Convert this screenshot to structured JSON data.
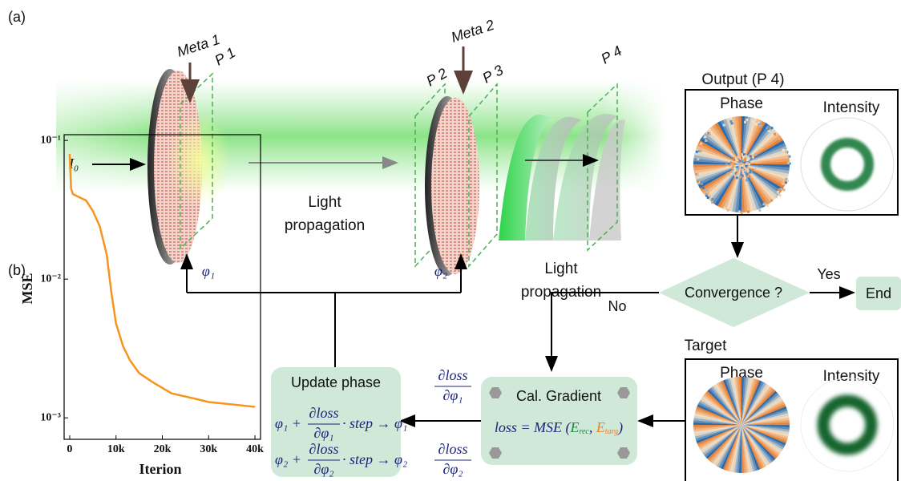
{
  "panel_labels": [
    "(a)",
    "(b)"
  ],
  "setup": {
    "meta1": "Meta 1",
    "meta2": "Meta 2",
    "planes": [
      "P 1",
      "P 2",
      "P 3",
      "P 4"
    ],
    "input": "I₀",
    "propagation": [
      [
        "Light",
        "propagation"
      ],
      [
        "Light",
        "propagation"
      ]
    ],
    "phases": [
      "φ₁",
      "φ₂"
    ]
  },
  "output": {
    "title": "Output (P 4)",
    "phase": "Phase",
    "intensity": "Intensity"
  },
  "target": {
    "title": "Target",
    "phase": "Phase",
    "intensity": "Intensity"
  },
  "decision": {
    "question": "Convergence ?",
    "yes": "Yes",
    "no": "No",
    "end": "End"
  },
  "gradient": {
    "title": "Cal. Gradient",
    "loss": [
      "loss = MSE (",
      "E",
      "rec",
      ", ",
      "E",
      "targ",
      ")"
    ],
    "derivatives": [
      {
        "num": "∂loss",
        "den": "∂φ₁"
      },
      {
        "num": "∂loss",
        "den": "∂φ₂"
      }
    ]
  },
  "update": {
    "title": "Update phase",
    "equations": [
      {
        "lhs": "φ₁ +",
        "num": "∂loss",
        "den": "∂φ₁",
        "rhs": "· step → φ₁"
      },
      {
        "lhs": "φ₂ +",
        "num": "∂loss",
        "den": "∂φ₂",
        "rhs": "· step → φ₂"
      }
    ]
  },
  "chart_data": {
    "type": "line",
    "x_label": "Iterion",
    "y_label": "MSE",
    "x": [
      0,
      300,
      700,
      2000,
      3500,
      5000,
      6500,
      8000,
      9000,
      10000,
      11500,
      13000,
      15000,
      18000,
      22000,
      26000,
      30000,
      35000,
      40000
    ],
    "values": [
      0.08,
      0.045,
      0.041,
      0.039,
      0.037,
      0.031,
      0.024,
      0.015,
      0.008,
      0.0048,
      0.0033,
      0.0026,
      0.0021,
      0.0018,
      0.0015,
      0.0014,
      0.0013,
      0.00125,
      0.0012
    ],
    "color": "#f7941d",
    "xlim": [
      -1200,
      41200
    ],
    "xticks": [
      0,
      {
        "value": 10000,
        "label": "10k"
      },
      {
        "value": 20000,
        "label": "20k"
      },
      {
        "value": 30000,
        "label": "30k"
      },
      {
        "value": 40000,
        "label": "40k"
      }
    ],
    "ylim": [
      0.0007,
      0.11
    ],
    "yticks": [
      {
        "value": 0.1,
        "label": "10⁻¹"
      },
      {
        "value": 0.01,
        "label": "10⁻²"
      },
      {
        "value": 0.001,
        "label": "10⁻³"
      }
    ],
    "ylog": true
  }
}
